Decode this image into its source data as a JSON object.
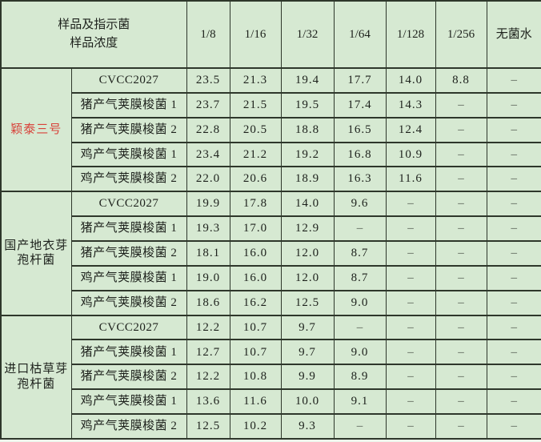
{
  "chart_data": {
    "type": "table",
    "title": "",
    "corner_header": [
      "样品及指示菌",
      "样品浓度"
    ],
    "dilution_columns": [
      "1/8",
      "1/16",
      "1/32",
      "1/64",
      "1/128",
      "1/256",
      "无菌水"
    ],
    "dash": "–",
    "groups": [
      {
        "name": "颖泰三号",
        "name_color": "#d8423a",
        "rows": [
          {
            "label": "CVCC2027",
            "values": [
              "23.5",
              "21.3",
              "19.4",
              "17.7",
              "14.0",
              "8.8",
              "–"
            ]
          },
          {
            "label": "猪产气荚膜梭菌 1",
            "values": [
              "23.7",
              "21.5",
              "19.5",
              "17.4",
              "14.3",
              "–",
              "–"
            ]
          },
          {
            "label": "猪产气荚膜梭菌 2",
            "values": [
              "22.8",
              "20.5",
              "18.8",
              "16.5",
              "12.4",
              "–",
              "–"
            ]
          },
          {
            "label": "鸡产气荚膜梭菌 1",
            "values": [
              "23.4",
              "21.2",
              "19.2",
              "16.8",
              "10.9",
              "–",
              "–"
            ]
          },
          {
            "label": "鸡产气荚膜梭菌 2",
            "values": [
              "22.0",
              "20.6",
              "18.9",
              "16.3",
              "11.6",
              "–",
              "–"
            ]
          }
        ]
      },
      {
        "name": "国产地衣芽孢杆菌",
        "name_color": "",
        "rows": [
          {
            "label": "CVCC2027",
            "values": [
              "19.9",
              "17.8",
              "14.0",
              "9.6",
              "–",
              "–",
              "–"
            ]
          },
          {
            "label": "猪产气荚膜梭菌 1",
            "values": [
              "19.3",
              "17.0",
              "12.9",
              "–",
              "–",
              "–",
              "–"
            ]
          },
          {
            "label": "猪产气荚膜梭菌 2",
            "values": [
              "18.1",
              "16.0",
              "12.0",
              "8.7",
              "–",
              "–",
              "–"
            ]
          },
          {
            "label": "鸡产气荚膜梭菌 1",
            "values": [
              "19.0",
              "16.0",
              "12.0",
              "8.7",
              "–",
              "–",
              "–"
            ]
          },
          {
            "label": "鸡产气荚膜梭菌 2",
            "values": [
              "18.6",
              "16.2",
              "12.5",
              "9.0",
              "–",
              "–",
              "–"
            ]
          }
        ]
      },
      {
        "name": "进口枯草芽孢杆菌",
        "name_color": "",
        "rows": [
          {
            "label": "CVCC2027",
            "values": [
              "12.2",
              "10.7",
              "9.7",
              "–",
              "–",
              "–",
              "–"
            ]
          },
          {
            "label": "猪产气荚膜梭菌 1",
            "values": [
              "12.7",
              "10.7",
              "9.7",
              "9.0",
              "–",
              "–",
              "–"
            ]
          },
          {
            "label": "猪产气荚膜梭菌 2",
            "values": [
              "12.2",
              "10.8",
              "9.9",
              "8.9",
              "–",
              "–",
              "–"
            ]
          },
          {
            "label": "鸡产气荚膜梭菌 1",
            "values": [
              "13.6",
              "11.6",
              "10.0",
              "9.1",
              "–",
              "–",
              "–"
            ]
          },
          {
            "label": "鸡产气荚膜梭菌 2",
            "values": [
              "12.5",
              "10.2",
              "9.3",
              "–",
              "–",
              "–",
              "–"
            ]
          }
        ]
      }
    ]
  },
  "colors": {
    "table_background": "#d6e9d2",
    "border": "#2e372b",
    "text": "#1d211c",
    "group1_red": "#d8423a",
    "dash_gray": "#51594f"
  }
}
